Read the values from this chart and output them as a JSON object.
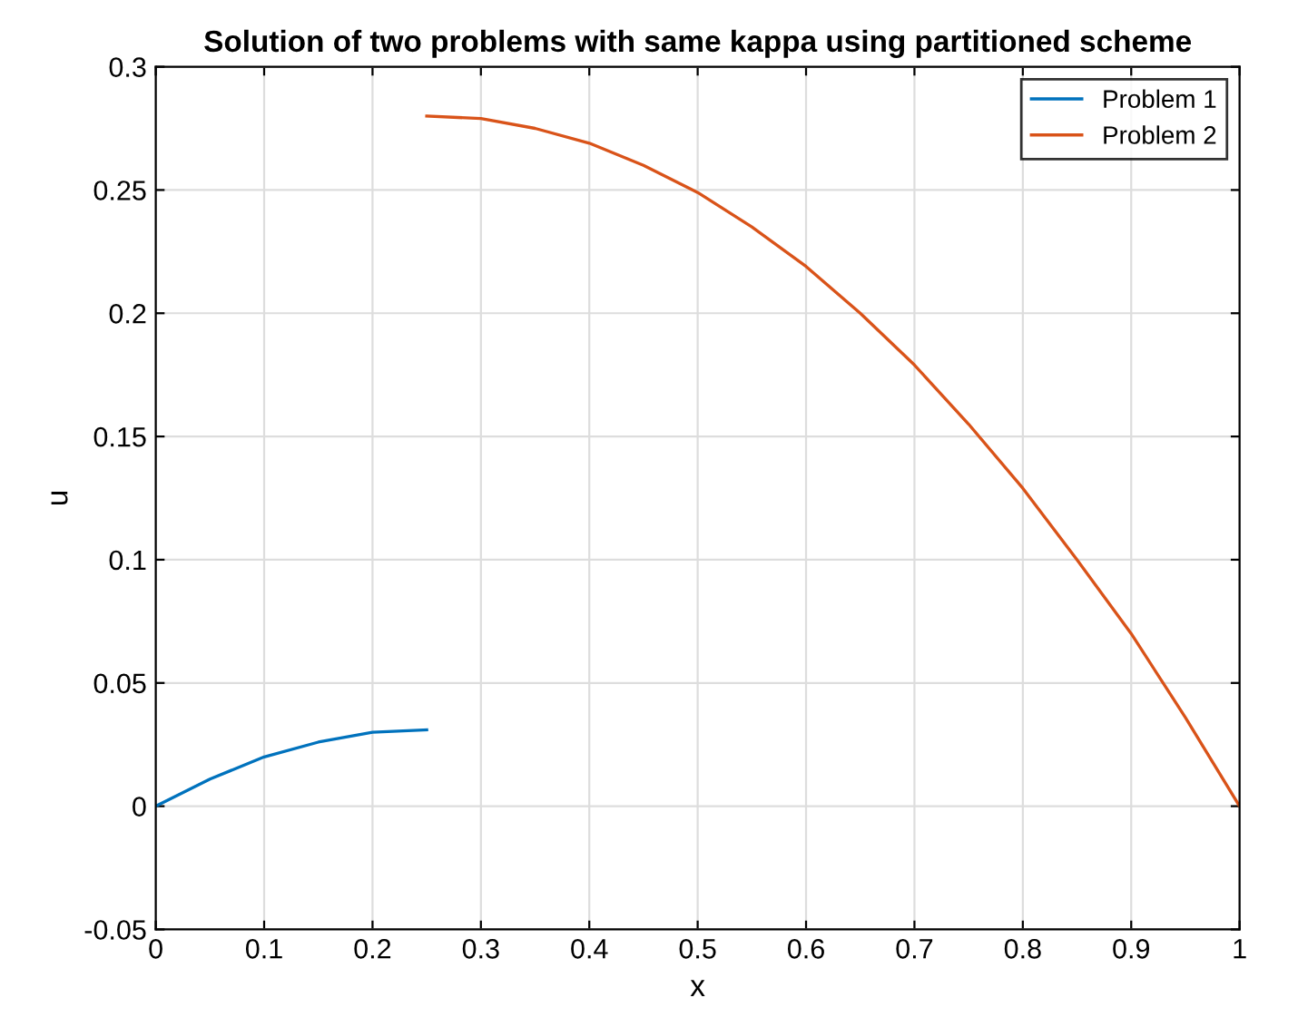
{
  "chart_data": {
    "type": "line",
    "title": "Solution of two problems with same kappa using partitioned scheme",
    "xlabel": "x",
    "ylabel": "u",
    "series": [
      {
        "name": "Problem 1",
        "color": "#0072bd",
        "x": [
          0,
          0.05,
          0.1,
          0.15,
          0.2,
          0.25
        ],
        "values": [
          0,
          0.011,
          0.02,
          0.026,
          0.03,
          0.031
        ]
      },
      {
        "name": "Problem 2",
        "color": "#d95319",
        "x": [
          0.25,
          0.3,
          0.35,
          0.4,
          0.45,
          0.5,
          0.55,
          0.6,
          0.65,
          0.7,
          0.75,
          0.8,
          0.85,
          0.9,
          0.95,
          1
        ],
        "values": [
          0.28,
          0.279,
          0.275,
          0.269,
          0.26,
          0.249,
          0.235,
          0.219,
          0.2,
          0.179,
          0.155,
          0.129,
          0.1,
          0.07,
          0.036,
          0
        ]
      }
    ],
    "xlim": [
      0,
      1
    ],
    "xticks": [
      0,
      0.1,
      0.2,
      0.3,
      0.4,
      0.5,
      0.6,
      0.7,
      0.8,
      0.9,
      1
    ],
    "ylim": [
      -0.05,
      0.3
    ],
    "yticks": [
      -0.05,
      0,
      0.05,
      0.1,
      0.15,
      0.2,
      0.25,
      0.3
    ],
    "grid": true,
    "legend": "top right",
    "marker": "none",
    "line_style": "solid"
  }
}
